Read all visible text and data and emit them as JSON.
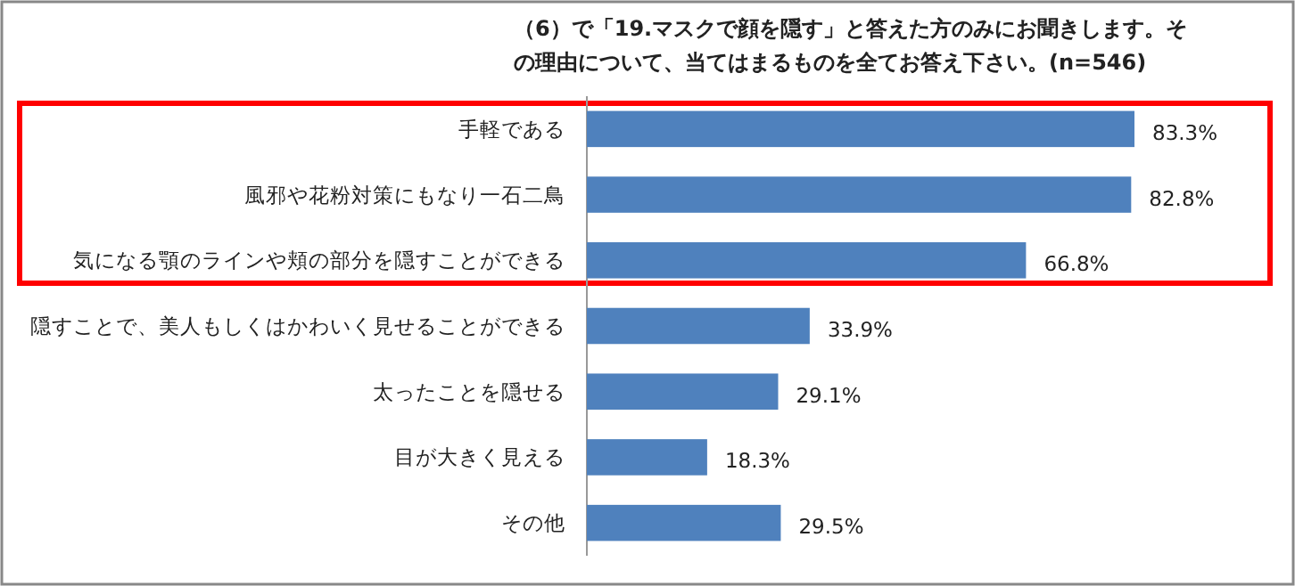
{
  "chart_data": {
    "type": "bar",
    "orientation": "horizontal",
    "title": "（6）で「19.マスクで顔を隠す」と答えた方のみにお聞きします。その理由について、当てはまるものを全てお答え下さい。(n=546)",
    "categories": [
      "手軽である",
      "風邪や花粉対策にもなり一石二鳥",
      "気になる顎のラインや頬の部分を隠すことができる",
      "隠すことで、美人もしくはかわいく見せることができる",
      "太ったことを隠せる",
      "目が大きく見える",
      "その他"
    ],
    "values": [
      83.3,
      82.8,
      66.8,
      33.9,
      29.1,
      18.3,
      29.5
    ],
    "value_labels": [
      "83.3%",
      "82.8%",
      "66.8%",
      "33.9%",
      "29.1%",
      "18.3%",
      "29.5%"
    ],
    "color": "#4f81bd"
  }
}
